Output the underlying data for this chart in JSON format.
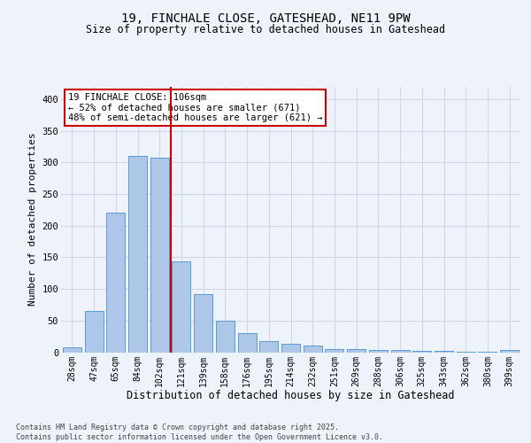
{
  "title_line1": "19, FINCHALE CLOSE, GATESHEAD, NE11 9PW",
  "title_line2": "Size of property relative to detached houses in Gateshead",
  "xlabel": "Distribution of detached houses by size in Gateshead",
  "ylabel": "Number of detached properties",
  "categories": [
    "28sqm",
    "47sqm",
    "65sqm",
    "84sqm",
    "102sqm",
    "121sqm",
    "139sqm",
    "158sqm",
    "176sqm",
    "195sqm",
    "214sqm",
    "232sqm",
    "251sqm",
    "269sqm",
    "288sqm",
    "306sqm",
    "325sqm",
    "343sqm",
    "362sqm",
    "380sqm",
    "399sqm"
  ],
  "bar_heights": [
    8,
    65,
    220,
    310,
    307,
    143,
    92,
    50,
    30,
    18,
    14,
    10,
    5,
    5,
    3,
    3,
    2,
    2,
    1,
    1,
    3
  ],
  "bar_color": "#aec6e8",
  "bar_edge_color": "#5b9bd5",
  "grid_color": "#d0d8e8",
  "annotation_box_color": "#cc0000",
  "vline_color": "#cc0000",
  "vline_x": 4.5,
  "annotation_text": "19 FINCHALE CLOSE: 106sqm\n← 52% of detached houses are smaller (671)\n48% of semi-detached houses are larger (621) →",
  "footer_text": "Contains HM Land Registry data © Crown copyright and database right 2025.\nContains public sector information licensed under the Open Government Licence v3.0.",
  "ylim": [
    0,
    420
  ],
  "yticks": [
    0,
    50,
    100,
    150,
    200,
    250,
    300,
    350,
    400
  ],
  "background_color": "#eef2fa",
  "title_fontsize": 10,
  "subtitle_fontsize": 8.5,
  "ylabel_fontsize": 8,
  "xlabel_fontsize": 8.5,
  "tick_fontsize": 7,
  "footer_fontsize": 6,
  "annotation_fontsize": 7.5
}
